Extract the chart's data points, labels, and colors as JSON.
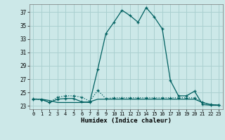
{
  "xlabel": "Humidex (Indice chaleur)",
  "background_color": "#cce8e8",
  "grid_color": "#aad0d0",
  "line_color": "#006060",
  "xlim": [
    -0.5,
    23.5
  ],
  "ylim": [
    22.5,
    38.2
  ],
  "yticks": [
    23,
    25,
    27,
    29,
    31,
    33,
    35,
    37
  ],
  "xticks": [
    0,
    1,
    2,
    3,
    4,
    5,
    6,
    7,
    8,
    9,
    10,
    11,
    12,
    13,
    14,
    15,
    16,
    17,
    18,
    19,
    20,
    21,
    22,
    23
  ],
  "series1_x": [
    0,
    1,
    2,
    3,
    4,
    5,
    6,
    7,
    8,
    9,
    10,
    11,
    12,
    13,
    14,
    15,
    16,
    17,
    18,
    19,
    20,
    21,
    22,
    23
  ],
  "series1_y": [
    24.0,
    24.0,
    23.5,
    24.0,
    24.1,
    24.1,
    23.6,
    23.5,
    28.5,
    33.8,
    35.5,
    37.3,
    36.5,
    35.5,
    37.7,
    36.3,
    34.5,
    26.8,
    24.5,
    24.5,
    25.2,
    23.2,
    23.1,
    23.1
  ],
  "series2_x": [
    0,
    1,
    2,
    3,
    4,
    5,
    6,
    7,
    8,
    9,
    10,
    11,
    12,
    13,
    14,
    15,
    16,
    17,
    18,
    19,
    20,
    21,
    22,
    23
  ],
  "series2_y": [
    24.1,
    23.9,
    23.5,
    24.3,
    24.5,
    24.5,
    24.3,
    23.7,
    25.3,
    24.1,
    24.2,
    24.2,
    24.2,
    24.2,
    24.2,
    24.2,
    24.2,
    24.2,
    24.2,
    24.2,
    24.2,
    23.5,
    23.2,
    23.1
  ],
  "series3_x": [
    0,
    1,
    2,
    3,
    4,
    5,
    6,
    7,
    8,
    9,
    10,
    11,
    12,
    13,
    14,
    15,
    16,
    17,
    18,
    19,
    20,
    21,
    22,
    23
  ],
  "series3_y": [
    24.0,
    24.0,
    23.8,
    23.5,
    23.5,
    23.5,
    23.5,
    23.6,
    24.0,
    24.0,
    24.0,
    24.0,
    24.0,
    24.0,
    24.0,
    24.0,
    24.0,
    24.0,
    24.0,
    24.0,
    24.0,
    23.5,
    23.2,
    23.1
  ]
}
